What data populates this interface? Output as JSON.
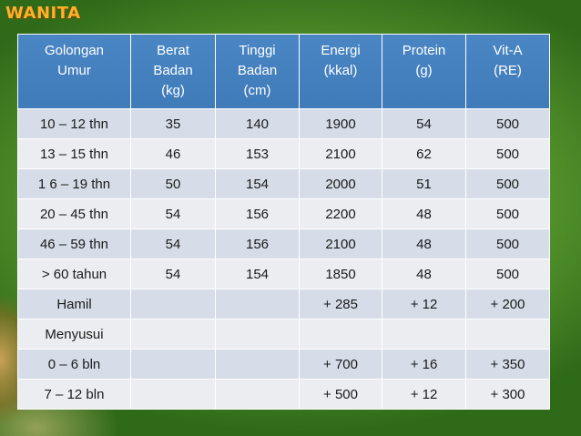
{
  "title": "WANITA",
  "table": {
    "headers": [
      [
        "Golongan",
        "Umur"
      ],
      [
        "Berat",
        "Badan",
        "(kg)"
      ],
      [
        "Tinggi",
        "Badan",
        "(cm)"
      ],
      [
        "Energi",
        "(kkal)"
      ],
      [
        "Protein",
        "(g)"
      ],
      [
        "Vit-A",
        "(RE)"
      ]
    ],
    "rows": [
      [
        "10 – 12 thn",
        "35",
        "140",
        "1900",
        "54",
        "500"
      ],
      [
        "13 – 15 thn",
        "46",
        "153",
        "2100",
        "62",
        "500"
      ],
      [
        "1 6 – 19 thn",
        "50",
        "154",
        "2000",
        "51",
        "500"
      ],
      [
        "20 – 45 thn",
        "54",
        "156",
        "2200",
        "48",
        "500"
      ],
      [
        "46 – 59 thn",
        "54",
        "156",
        "2100",
        "48",
        "500"
      ],
      [
        "> 60 tahun",
        "54",
        "154",
        "1850",
        "48",
        "500"
      ],
      [
        "Hamil",
        "",
        "",
        "+ 285",
        "+ 12",
        "+ 200"
      ],
      [
        "Menyusui",
        "",
        "",
        "",
        "",
        ""
      ],
      [
        "0 – 6 bln",
        "",
        "",
        "+ 700",
        "+ 16",
        "+ 350"
      ],
      [
        "7 – 12 bln",
        "",
        "",
        "+ 500",
        "+ 12",
        "+ 300"
      ]
    ]
  },
  "colors": {
    "title": "#ffb12a",
    "header_bg": "#4a86c4",
    "row_odd": "#d6dde9",
    "row_even": "#ecedf1",
    "background": "#4f8e2a"
  }
}
